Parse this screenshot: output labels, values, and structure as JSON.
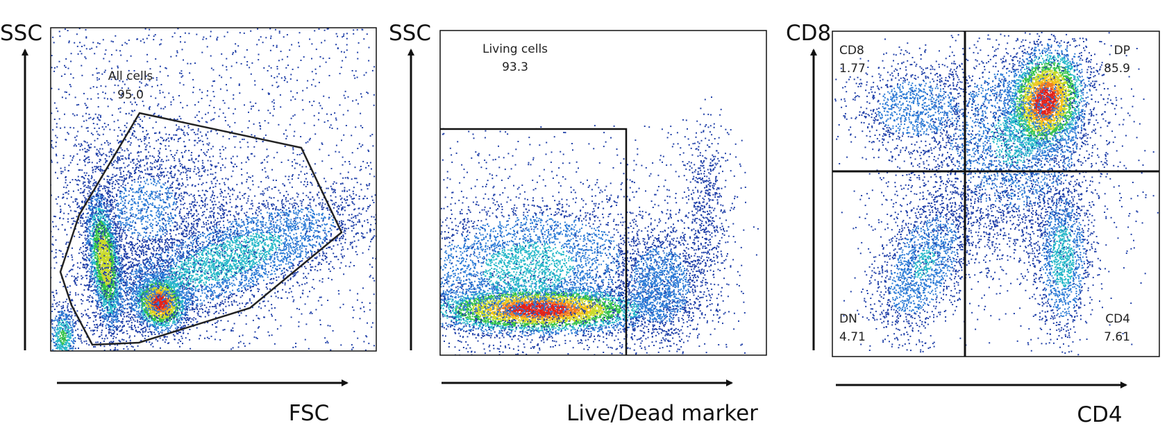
{
  "chart_data": [
    {
      "type": "scatter",
      "subtype": "flow-cytometry-density-plot",
      "xlabel": "FSC",
      "ylabel": "SSC",
      "grid": false,
      "gate": {
        "shape": "polygon",
        "label": "All cells",
        "value": "95.0"
      },
      "colors": [
        "#1f3fa8",
        "#2b7bd6",
        "#27b8c9",
        "#35c24a",
        "#c9d92a",
        "#f0c419",
        "#ef7d1f",
        "#e2231a"
      ]
    },
    {
      "type": "scatter",
      "subtype": "flow-cytometry-density-plot",
      "xlabel": "Live/Dead marker",
      "ylabel": "SSC",
      "grid": false,
      "gate": {
        "shape": "rectangle",
        "label": "Living cells",
        "value": "93.3"
      },
      "colors": [
        "#1f3fa8",
        "#2b7bd6",
        "#27b8c9",
        "#35c24a",
        "#c9d92a",
        "#f0c419",
        "#ef7d1f",
        "#e2231a"
      ]
    },
    {
      "type": "scatter",
      "subtype": "flow-cytometry-quadrant-plot",
      "xlabel": "CD4",
      "ylabel": "CD8",
      "grid": false,
      "quadrants": [
        {
          "label": "CD8",
          "value": "1.77",
          "position": "top-left"
        },
        {
          "label": "DP",
          "value": "85.9",
          "position": "top-right"
        },
        {
          "label": "DN",
          "value": "4.71",
          "position": "bottom-left"
        },
        {
          "label": "CD4",
          "value": "7.61",
          "position": "bottom-right"
        }
      ],
      "colors": [
        "#1f3fa8",
        "#2b7bd6",
        "#27b8c9",
        "#35c24a",
        "#c9d92a",
        "#f0c419",
        "#ef7d1f",
        "#e2231a"
      ]
    }
  ]
}
